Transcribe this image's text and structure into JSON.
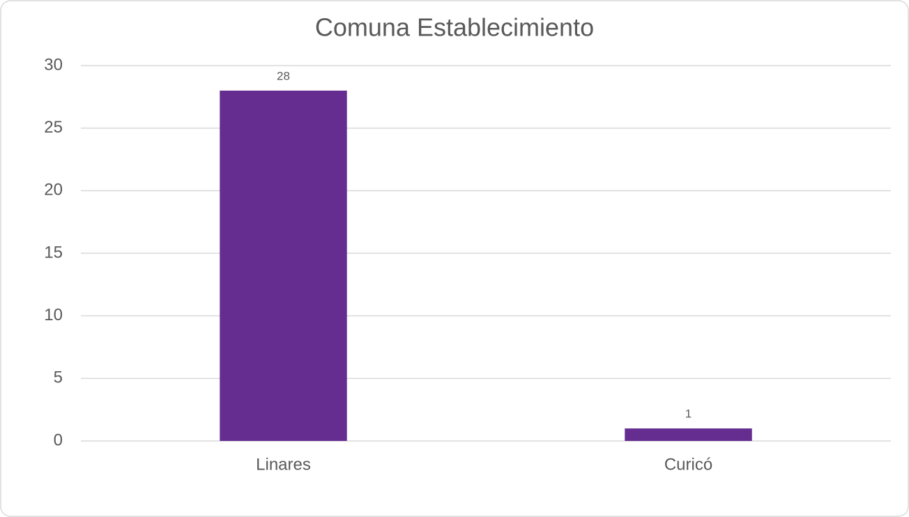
{
  "chart_data": {
    "type": "bar",
    "title": "Comuna Establecimiento",
    "categories": [
      "Linares",
      "Curicó"
    ],
    "values": [
      28,
      1
    ],
    "color": "#662d91",
    "ylim": [
      0,
      30
    ],
    "yticks": [
      0,
      5,
      10,
      15,
      20,
      25,
      30
    ],
    "grid": true
  }
}
